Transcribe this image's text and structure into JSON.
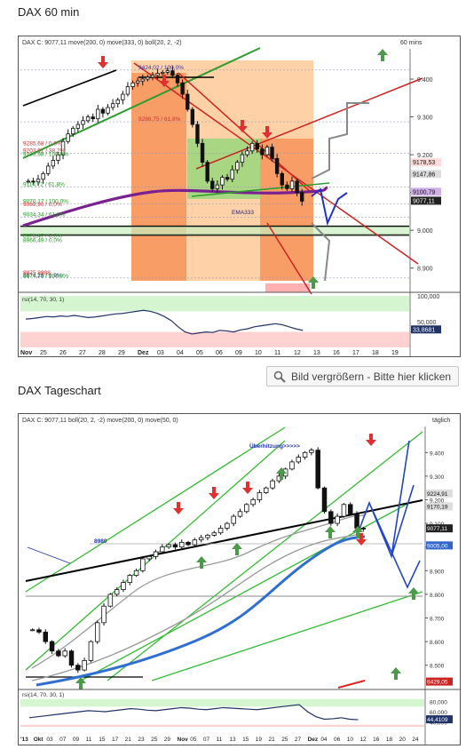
{
  "top_title": "DAX 60 min",
  "bottom_title": "DAX Tageschart",
  "zoom_button": "Bild vergrößern - Bitte hier klicken",
  "zoom_icon": "magnifier-icon",
  "chart_data": [
    {
      "type": "candlestick",
      "header": "DAX C: 9077,11 move(200, 0) move(333, 0) boll(20, 2, -2)",
      "interval": "60 mins",
      "ylim": [
        8850,
        9480
      ],
      "y_ticks": [
        8900,
        9000,
        9100,
        9200,
        9300,
        9400
      ],
      "x_tick_labels": [
        "Nov",
        "25",
        "26",
        "27",
        "28",
        "29",
        "Dez",
        "03",
        "04",
        "05",
        "06",
        "09",
        "10",
        "11",
        "12",
        "13",
        "16",
        "17",
        "18",
        "19"
      ],
      "price_labels": [
        {
          "text": "9178,53",
          "value": 9178.53,
          "color": "#ffdada"
        },
        {
          "text": "9147,86",
          "value": 9147.86,
          "color": "#dddddd"
        },
        {
          "text": "9100,79",
          "value": 9100.79,
          "color": "#d0b0e8"
        },
        {
          "text": "9077,11",
          "value": 9077.11,
          "color": "#222222"
        }
      ],
      "level_labels": [
        {
          "text": "9424,02 / 100,0%",
          "value": 9424,
          "color": "#3333aa"
        },
        {
          "text": "9286,75 / 61,8%",
          "value": 9287,
          "color": "#cc3333"
        },
        {
          "text": "9203,91 / 38,2%",
          "value": 9204,
          "color": "#cc3333"
        },
        {
          "text": "9193,98 / 100,0%",
          "value": 9194,
          "color": "#229922"
        },
        {
          "text": "9114,72 / 61,8%",
          "value": 9115,
          "color": "#229922"
        },
        {
          "text": "9070,17 / 100,0%",
          "value": 9070,
          "color": "#229922"
        },
        {
          "text": "9069,90 / 0,0%",
          "value": 9062,
          "color": "#cc3333"
        },
        {
          "text": "9034,34 / 61,8%",
          "value": 9034,
          "color": "#229922"
        },
        {
          "text": "8966,49 / 0,0%",
          "value": 8966,
          "color": "#229922"
        },
        {
          "text": "8976,47 / 0,0%",
          "value": 8978,
          "color": "#229922"
        },
        {
          "text": "8874,26 / 0,0%",
          "value": 8874,
          "color": "#3333aa"
        },
        {
          "text": "8877,73 / 100,0%",
          "value": 8872,
          "color": "#229922"
        },
        {
          "text": "8875 8888",
          "value": 8880,
          "color": "#cc3333"
        },
        {
          "text": "9285,68 / 0,0%",
          "value": 9223,
          "color": "#cc3333"
        },
        {
          "text": "EMA333",
          "value": 9040,
          "color": "#222288"
        }
      ],
      "close_series": [
        9130,
        9128,
        9135,
        9150,
        9170,
        9185,
        9200,
        9235,
        9255,
        9270,
        9280,
        9290,
        9300,
        9295,
        9320,
        9310,
        9325,
        9335,
        9345,
        9360,
        9380,
        9390,
        9395,
        9400,
        9405,
        9410,
        9415,
        9418,
        9422,
        9410,
        9390,
        9360,
        9320,
        9280,
        9230,
        9180,
        9130,
        9110,
        9120,
        9140,
        9135,
        9160,
        9180,
        9200,
        9210,
        9230,
        9215,
        9200,
        9220,
        9190,
        9150,
        9120,
        9110,
        9130,
        9100,
        9077
      ],
      "oscillator": {
        "header": "rsi(14, 70, 30, 1)",
        "ylim": [
          0,
          100
        ],
        "y_ticks": [
          50,
          100
        ],
        "current": "33,8681",
        "values": [
          55,
          56,
          58,
          60,
          59,
          61,
          60,
          62,
          60,
          58,
          59,
          61,
          63,
          65,
          66,
          68,
          70,
          72,
          70,
          66,
          60,
          52,
          40,
          30,
          26,
          28,
          30,
          29,
          33,
          32,
          30,
          34,
          36,
          40,
          42,
          44,
          46,
          44,
          40,
          36,
          33
        ]
      }
    },
    {
      "type": "candlestick",
      "header": "DAX C: 9077,11 boll(20, 2, -2) move(200, 0) move(50, 0)",
      "interval": "täglich",
      "ylim": [
        8420,
        9510
      ],
      "y_ticks": [
        8500,
        8600,
        8700,
        8800,
        8900,
        9000,
        9100,
        9200,
        9300,
        9400
      ],
      "x_tick_labels": [
        "'13",
        "Okt",
        "03",
        "07",
        "09",
        "11",
        "15",
        "17",
        "21",
        "23",
        "25",
        "29",
        "Nov",
        "05",
        "07",
        "11",
        "13",
        "15",
        "19",
        "21",
        "25",
        "27",
        "Dez",
        "04",
        "06",
        "10",
        "12",
        "16",
        "18",
        "20",
        "24"
      ],
      "price_labels": [
        {
          "text": "9224,91",
          "value": 9224.91,
          "color": "#dddddd"
        },
        {
          "text": "9170,19",
          "value": 9170.19,
          "color": "#dddddd"
        },
        {
          "text": "9077,11",
          "value": 9077.11,
          "color": "#222222"
        },
        {
          "text": "9005,00",
          "value": 9005.0,
          "color": "#3366cc"
        },
        {
          "text": "8429,05",
          "value": 8429.05,
          "color": "#cc2222"
        }
      ],
      "annotations": [
        {
          "text": "Überhitzung>>>>>",
          "value": 9400,
          "color": "#2233aa"
        },
        {
          "text": "8980",
          "value": 8980,
          "color": "#2233aa"
        }
      ],
      "close_series": [
        8650,
        8640,
        8600,
        8560,
        8540,
        8560,
        8500,
        8480,
        8520,
        8600,
        8680,
        8750,
        8800,
        8820,
        8850,
        8880,
        8900,
        8950,
        8960,
        8980,
        9000,
        9010,
        9000,
        9020,
        9010,
        9030,
        9040,
        9050,
        9060,
        9080,
        9100,
        9130,
        9150,
        9180,
        9200,
        9230,
        9250,
        9280,
        9300,
        9330,
        9360,
        9380,
        9400,
        9410,
        9250,
        9150,
        9100,
        9130,
        9180,
        9140,
        9080,
        9077
      ],
      "oscillator": {
        "header": "rsi(14, 70, 30, 1)",
        "ylim": [
          0,
          100
        ],
        "y_ticks": [
          40,
          60,
          80
        ],
        "current": "44,4109",
        "values": [
          48,
          50,
          52,
          54,
          56,
          58,
          60,
          62,
          61,
          60,
          62,
          64,
          66,
          65,
          63,
          62,
          64,
          66,
          68,
          67,
          65,
          64,
          66,
          68,
          67,
          66,
          65,
          64,
          66,
          68,
          70,
          72,
          74,
          60,
          50,
          45,
          46,
          48,
          45,
          44
        ]
      }
    }
  ]
}
